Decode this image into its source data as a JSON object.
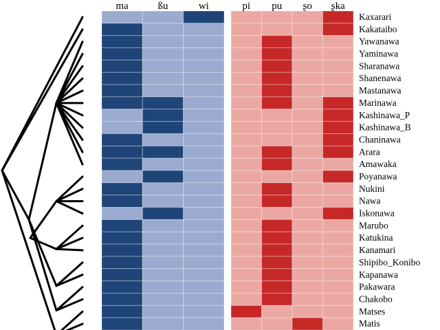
{
  "chart_data": {
    "type": "heatmap",
    "title": "",
    "colors": {
      "blue_present": "#1f4478",
      "blue_absent": "#9aabcf",
      "red_present": "#c62828",
      "red_absent": "#eba8a3",
      "tree": "#000000"
    },
    "groups": [
      {
        "name": "blue",
        "columns": [
          "ma",
          "ßu",
          "wi"
        ]
      },
      {
        "name": "red",
        "columns": [
          "pi",
          "pu",
          "ʂo",
          "ʂka"
        ]
      }
    ],
    "columns": [
      "ma",
      "ßu",
      "wi",
      "pi",
      "pu",
      "ʂo",
      "ʂka"
    ],
    "rows": [
      "Kaxarari",
      "Kakataibo",
      "Yawanawa",
      "Yaminawa",
      "Sharanawa",
      "Shanenawa",
      "Mastanawa",
      "Marinawa",
      "Kashinawa_P",
      "Kashinawa_B",
      "Chaninawa",
      "Arara",
      "Amawaka",
      "Poyanawa",
      "Nukini",
      "Nawa",
      "Iskonawa",
      "Marubo",
      "Katukina",
      "Kanamari",
      "Shipibo_Konibo",
      "Kapanawa",
      "Pakawara",
      "Chakobo",
      "Matses",
      "Matis"
    ],
    "values": [
      [
        0,
        0,
        1,
        0,
        0,
        0,
        1
      ],
      [
        1,
        0,
        0,
        0,
        0,
        0,
        1
      ],
      [
        1,
        0,
        0,
        0,
        1,
        0,
        0
      ],
      [
        1,
        0,
        0,
        0,
        1,
        0,
        0
      ],
      [
        1,
        0,
        0,
        0,
        1,
        0,
        0
      ],
      [
        1,
        0,
        0,
        0,
        1,
        0,
        0
      ],
      [
        1,
        0,
        0,
        0,
        1,
        0,
        0
      ],
      [
        1,
        1,
        0,
        0,
        1,
        0,
        1
      ],
      [
        0,
        1,
        0,
        0,
        0,
        0,
        1
      ],
      [
        0,
        1,
        0,
        0,
        0,
        0,
        1
      ],
      [
        1,
        0,
        0,
        0,
        0,
        0,
        1
      ],
      [
        1,
        1,
        0,
        0,
        1,
        0,
        1
      ],
      [
        1,
        0,
        0,
        0,
        1,
        0,
        0
      ],
      [
        0,
        1,
        0,
        0,
        0,
        0,
        1
      ],
      [
        1,
        0,
        0,
        0,
        1,
        0,
        0
      ],
      [
        1,
        0,
        0,
        0,
        1,
        0,
        0
      ],
      [
        0,
        1,
        0,
        0,
        0,
        0,
        1
      ],
      [
        1,
        0,
        0,
        0,
        1,
        0,
        0
      ],
      [
        1,
        0,
        0,
        0,
        1,
        0,
        0
      ],
      [
        1,
        0,
        0,
        0,
        1,
        0,
        0
      ],
      [
        1,
        0,
        0,
        0,
        1,
        0,
        0
      ],
      [
        1,
        0,
        0,
        0,
        1,
        0,
        0
      ],
      [
        1,
        0,
        0,
        0,
        1,
        0,
        0
      ],
      [
        1,
        0,
        0,
        0,
        1,
        0,
        0
      ],
      [
        1,
        0,
        0,
        1,
        0,
        0,
        0
      ],
      [
        1,
        0,
        0,
        0,
        0,
        1,
        0
      ]
    ],
    "legend": "none",
    "grid": false,
    "tree": {
      "description": "dendrogram on left grouping rows",
      "clades": [
        {
          "members": [
            "Kaxarari"
          ]
        },
        {
          "members": [
            "Kakataibo"
          ]
        },
        {
          "members": [
            "Yawanawa",
            "Yaminawa",
            "Sharanawa",
            "Shanenawa",
            "Mastanawa",
            "Marinawa",
            "Kashinawa_P",
            "Kashinawa_B",
            "Chaninawa",
            "Arara",
            "Amawaka"
          ]
        },
        {
          "members": [
            "Poyanawa",
            "Nukini",
            "Nawa",
            "Iskonawa"
          ]
        },
        {
          "members": [
            "Marubo",
            "Katukina",
            "Kanamari"
          ]
        },
        {
          "members": [
            "Shipibo_Konibo",
            "Kapanawa"
          ]
        },
        {
          "members": [
            "Pakawara",
            "Chakobo"
          ]
        },
        {
          "members": [
            "Matses",
            "Matis"
          ]
        }
      ]
    }
  }
}
